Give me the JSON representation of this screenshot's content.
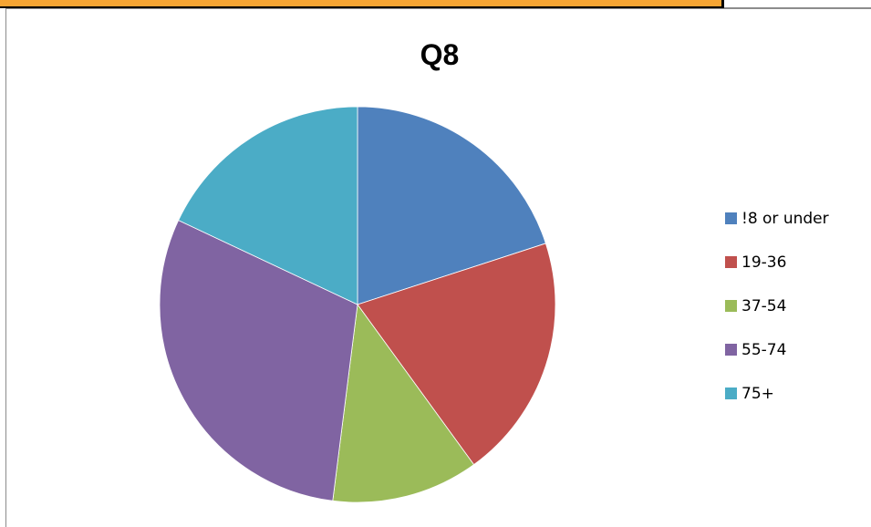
{
  "chart_data": {
    "type": "pie",
    "title": "Q8",
    "categories": [
      "!8 or under",
      "19-36",
      "37-54",
      "55-74",
      "75+"
    ],
    "values": [
      20,
      20,
      12,
      30,
      18
    ],
    "colors": [
      "#4f81bd",
      "#c0504d",
      "#9bbb59",
      "#8064a2",
      "#4bacc6"
    ],
    "legend_position": "right",
    "start_angle": "12 o'clock",
    "direction": "clockwise"
  }
}
